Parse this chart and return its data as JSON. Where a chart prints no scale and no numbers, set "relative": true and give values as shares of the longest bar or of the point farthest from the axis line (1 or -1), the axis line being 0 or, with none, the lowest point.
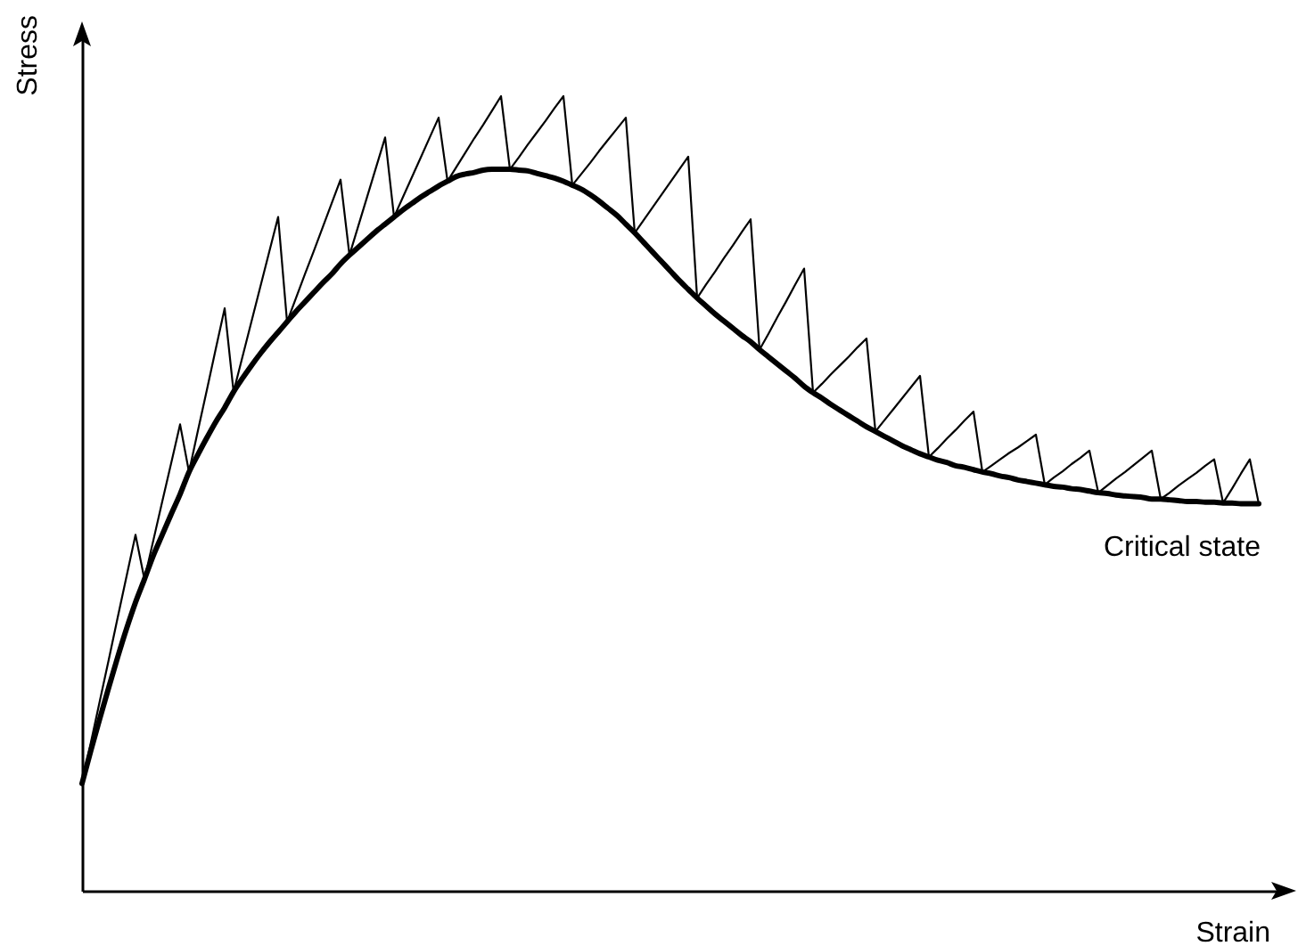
{
  "chart_data": {
    "type": "line",
    "xlabel": "Strain",
    "ylabel": "Stress",
    "relative": true,
    "annotations": [
      "Critical state"
    ],
    "categories": [
      null,
      null,
      null,
      null,
      null,
      null,
      null,
      null,
      null,
      null,
      null,
      null,
      null,
      null,
      null,
      null,
      null,
      null,
      null,
      null,
      null,
      null,
      null,
      null,
      null,
      null,
      null,
      null,
      null,
      null,
      null,
      null,
      null,
      null,
      null,
      null,
      null,
      null,
      null,
      null,
      null,
      null,
      null,
      null,
      null,
      null,
      null,
      null,
      null,
      null,
      null,
      null,
      null,
      null,
      null,
      null,
      null,
      null,
      null,
      null,
      null,
      null,
      null,
      null,
      null,
      null,
      null,
      null,
      null,
      null,
      null,
      null,
      null,
      null,
      null,
      null,
      null,
      null,
      null,
      null,
      null,
      null,
      null,
      null,
      null,
      null,
      null,
      null,
      null,
      null,
      null,
      null,
      null,
      null,
      null,
      null,
      null,
      null,
      null,
      null,
      null,
      null,
      null,
      null,
      null,
      null,
      null,
      null,
      null,
      null,
      null,
      null,
      null,
      null,
      null,
      null,
      null,
      null,
      null,
      null,
      null,
      null,
      null,
      null,
      null,
      null,
      null,
      null,
      null,
      null,
      null,
      null,
      null
    ],
    "series": [
      {
        "color": "#000000",
        "values": [
          0.135,
          0.177,
          0.217,
          0.256,
          0.294,
          0.33,
          0.363,
          0.392,
          0.422,
          0.448,
          0.474,
          0.499,
          0.527,
          0.549,
          0.57,
          0.59,
          0.608,
          0.628,
          0.645,
          0.661,
          0.676,
          0.69,
          0.703,
          0.716,
          0.729,
          0.741,
          0.753,
          0.765,
          0.776,
          0.789,
          0.8,
          0.81,
          0.82,
          0.83,
          0.839,
          0.848,
          0.857,
          0.865,
          0.873,
          0.88,
          0.887,
          0.893,
          0.899,
          0.902,
          0.904,
          0.907,
          0.908,
          0.908,
          0.908,
          0.907,
          0.906,
          0.903,
          0.9,
          0.897,
          0.893,
          0.888,
          0.883,
          0.876,
          0.868,
          0.859,
          0.85,
          0.839,
          0.828,
          0.816,
          0.804,
          0.792,
          0.78,
          0.768,
          0.757,
          0.746,
          0.736,
          0.726,
          0.717,
          0.708,
          0.699,
          0.691,
          0.681,
          0.672,
          0.663,
          0.654,
          0.645,
          0.635,
          0.627,
          0.62,
          0.612,
          0.605,
          0.598,
          0.591,
          0.584,
          0.578,
          0.572,
          0.566,
          0.56,
          0.555,
          0.55,
          0.546,
          0.542,
          0.539,
          0.535,
          0.533,
          0.53,
          0.527,
          0.525,
          0.522,
          0.52,
          0.517,
          0.515,
          0.513,
          0.511,
          0.509,
          0.508,
          0.506,
          0.505,
          0.503,
          0.501,
          0.5,
          0.498,
          0.497,
          0.496,
          0.495,
          0.493,
          0.493,
          0.492,
          0.491,
          0.49,
          0.49,
          0.489,
          0.489,
          0.488,
          0.488,
          0.487,
          0.487,
          0.487
        ]
      },
      {
        "color": "#000000",
        "values": [
          0.135,
          0.187,
          0.239,
          0.291,
          0.344,
          0.396,
          0.448,
          0.392,
          0.441,
          0.49,
          0.538,
          0.587,
          0.527,
          0.579,
          0.63,
          0.682,
          0.733,
          0.628,
          0.672,
          0.716,
          0.76,
          0.804,
          0.848,
          0.716,
          0.746,
          0.776,
          0.805,
          0.835,
          0.865,
          0.895,
          0.8,
          0.837,
          0.874,
          0.911,
          0.948,
          0.848,
          0.873,
          0.898,
          0.923,
          0.948,
          0.973,
          0.893,
          0.911,
          0.929,
          0.947,
          0.964,
          0.982,
          1,
          0.908,
          0.923,
          0.939,
          0.954,
          0.969,
          0.985,
          1,
          0.888,
          0.902,
          0.916,
          0.931,
          0.945,
          0.959,
          0.973,
          0.828,
          0.844,
          0.86,
          0.876,
          0.892,
          0.908,
          0.924,
          0.746,
          0.763,
          0.779,
          0.796,
          0.812,
          0.829,
          0.845,
          0.681,
          0.701,
          0.722,
          0.742,
          0.763,
          0.783,
          0.627,
          0.638,
          0.65,
          0.661,
          0.672,
          0.684,
          0.695,
          0.578,
          0.592,
          0.606,
          0.62,
          0.634,
          0.648,
          0.546,
          0.557,
          0.569,
          0.58,
          0.592,
          0.603,
          0.527,
          0.535,
          0.543,
          0.551,
          0.558,
          0.566,
          0.574,
          0.511,
          0.52,
          0.528,
          0.537,
          0.545,
          0.554,
          0.501,
          0.51,
          0.519,
          0.527,
          0.536,
          0.545,
          0.554,
          0.493,
          0.501,
          0.51,
          0.518,
          0.526,
          0.535,
          0.543,
          0.488,
          0.506,
          0.525,
          0.543,
          0.487
        ]
      }
    ]
  }
}
